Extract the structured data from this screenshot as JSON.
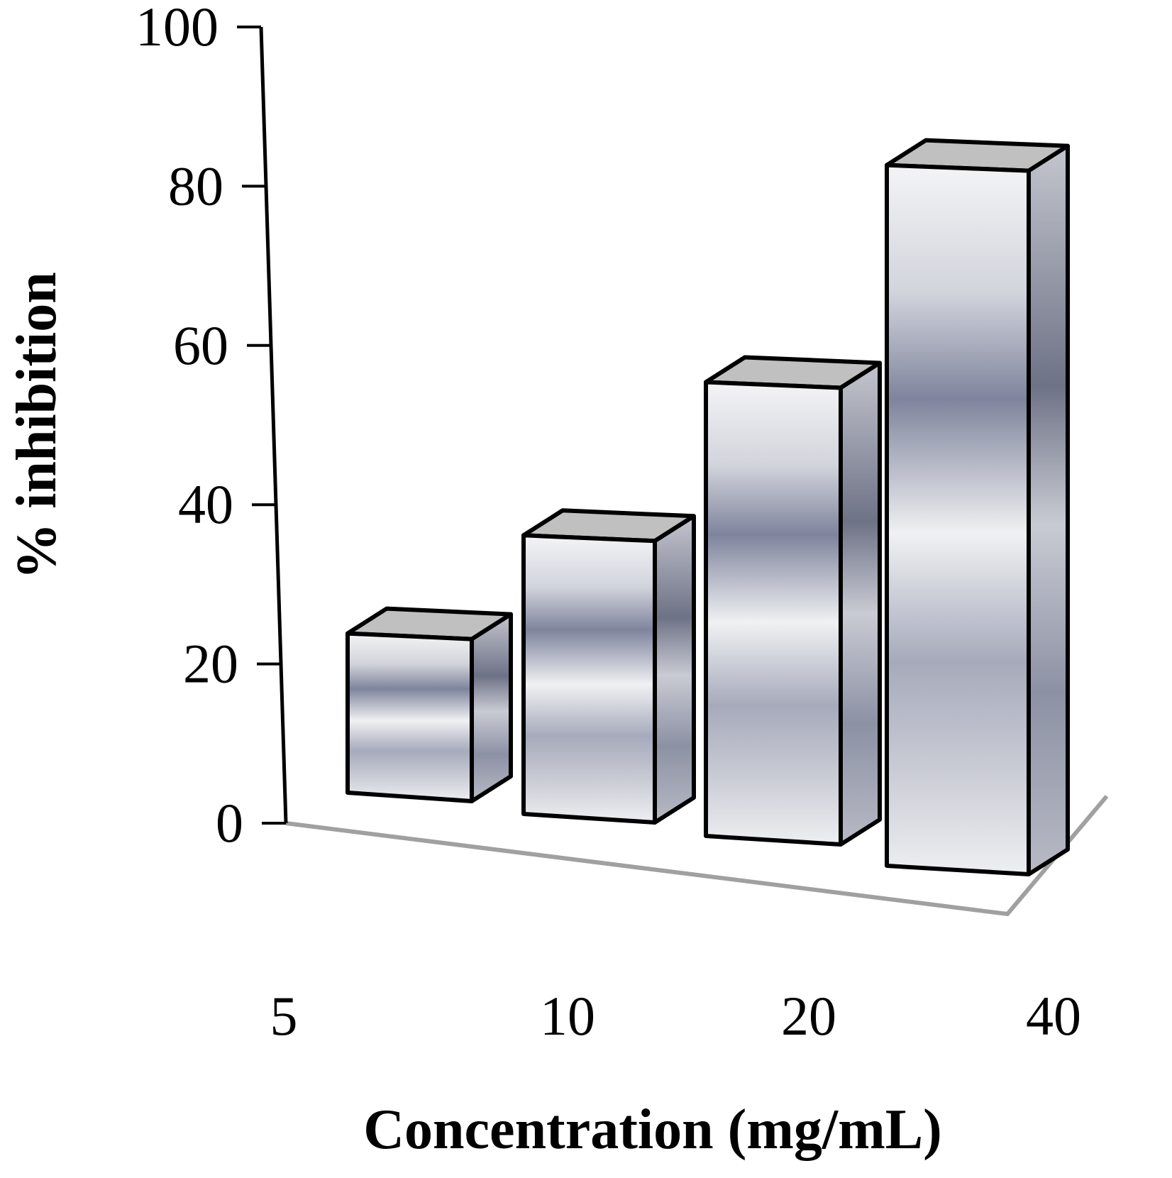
{
  "chart_data": {
    "type": "bar",
    "style": "3d-column",
    "categories": [
      "5",
      "10",
      "20",
      "40"
    ],
    "values": [
      20,
      35,
      57,
      88
    ],
    "xlabel": "Concentration (mg/mL)",
    "ylabel": "% inhibition",
    "ylim": [
      0,
      100
    ],
    "yticks": [
      "0",
      "20",
      "40",
      "60",
      "80",
      "100"
    ],
    "grid": false,
    "legend": "none",
    "colors": {
      "bar_front_light": "#f4f4f6",
      "bar_front_mid": "#9ea3b6",
      "bar_front_dark": "#7e849c",
      "bar_top": "#c0c0c0",
      "bar_side_dark": "#6e7286",
      "bar_side_light": "#c4c6ce",
      "outline": "#000000",
      "floor": "#a0a0a0",
      "axis": "#000000"
    }
  }
}
